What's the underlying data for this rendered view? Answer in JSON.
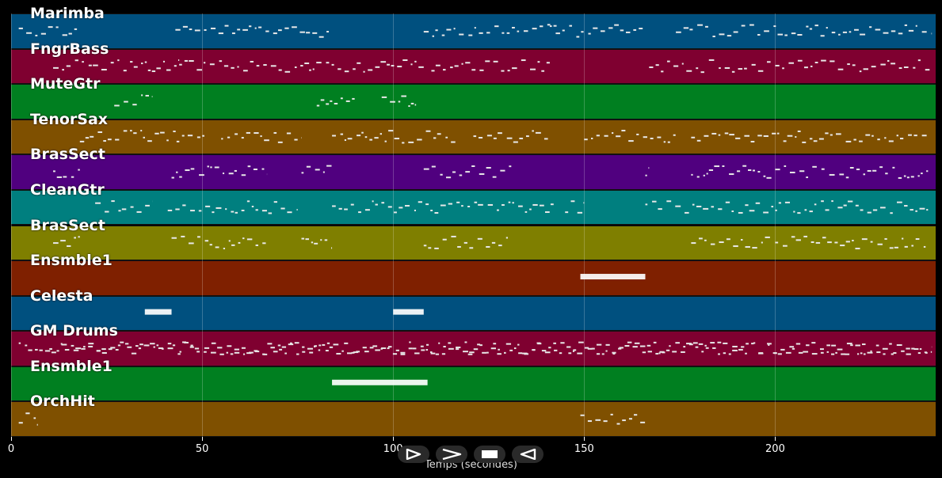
{
  "tracks": [
    {
      "label": "Marimba",
      "color": "#00507f"
    },
    {
      "label": "FngrBass",
      "color": "#7f0030"
    },
    {
      "label": "MuteGtr",
      "color": "#007f20"
    },
    {
      "label": "TenorSax",
      "color": "#7f5000"
    },
    {
      "label": "BrasSect",
      "color": "#50007f"
    },
    {
      "label": "CleanGtr",
      "color": "#007f7f"
    },
    {
      "label": "BrasSect",
      "color": "#7f7f00"
    },
    {
      "label": "Ensmble1",
      "color": "#7f2000"
    },
    {
      "label": "Celesta",
      "color": "#00507f"
    },
    {
      "label": "GM Drums",
      "color": "#7f0030"
    },
    {
      "label": "Ensmble1",
      "color": "#007f20"
    },
    {
      "label": "OrchHit",
      "color": "#7f5000"
    }
  ],
  "axis": {
    "xlabel": "Temps (secondes)",
    "xlim": [
      0,
      242
    ],
    "ticks": [
      0,
      50,
      100,
      150,
      200
    ],
    "tick_labels": [
      "0",
      "50",
      "100",
      "150",
      "200"
    ]
  },
  "controls": [
    {
      "name": "play-icon"
    },
    {
      "name": "fast-forward-icon"
    },
    {
      "name": "stop-icon"
    },
    {
      "name": "rewind-icon"
    }
  ],
  "note_segments": [
    {
      "track": 0,
      "start": 2,
      "end": 18
    },
    {
      "track": 0,
      "start": 43,
      "end": 84
    },
    {
      "track": 0,
      "start": 108,
      "end": 143
    },
    {
      "track": 0,
      "start": 141,
      "end": 166
    },
    {
      "track": 0,
      "start": 174,
      "end": 241
    },
    {
      "track": 1,
      "start": 11,
      "end": 44
    },
    {
      "track": 1,
      "start": 44,
      "end": 78
    },
    {
      "track": 1,
      "start": 78,
      "end": 108
    },
    {
      "track": 1,
      "start": 110,
      "end": 141
    },
    {
      "track": 1,
      "start": 167,
      "end": 241
    },
    {
      "track": 2,
      "start": 27,
      "end": 37
    },
    {
      "track": 2,
      "start": 80,
      "end": 90
    },
    {
      "track": 2,
      "start": 97,
      "end": 106
    },
    {
      "track": 3,
      "start": 18,
      "end": 51
    },
    {
      "track": 3,
      "start": 55,
      "end": 76
    },
    {
      "track": 3,
      "start": 84,
      "end": 117
    },
    {
      "track": 3,
      "start": 121,
      "end": 141
    },
    {
      "track": 3,
      "start": 150,
      "end": 174
    },
    {
      "track": 3,
      "start": 178,
      "end": 240
    },
    {
      "track": 4,
      "start": 11,
      "end": 18
    },
    {
      "track": 4,
      "start": 42,
      "end": 67
    },
    {
      "track": 4,
      "start": 76,
      "end": 84
    },
    {
      "track": 4,
      "start": 108,
      "end": 131
    },
    {
      "track": 4,
      "start": 166,
      "end": 167
    },
    {
      "track": 4,
      "start": 178,
      "end": 199
    },
    {
      "track": 4,
      "start": 200,
      "end": 240
    },
    {
      "track": 5,
      "start": 22,
      "end": 37
    },
    {
      "track": 5,
      "start": 41,
      "end": 75
    },
    {
      "track": 5,
      "start": 84,
      "end": 142
    },
    {
      "track": 5,
      "start": 145,
      "end": 150
    },
    {
      "track": 5,
      "start": 166,
      "end": 240
    },
    {
      "track": 6,
      "start": 11,
      "end": 18
    },
    {
      "track": 6,
      "start": 42,
      "end": 67
    },
    {
      "track": 6,
      "start": 76,
      "end": 84
    },
    {
      "track": 6,
      "start": 108,
      "end": 131
    },
    {
      "track": 6,
      "start": 178,
      "end": 199
    },
    {
      "track": 6,
      "start": 200,
      "end": 240
    },
    {
      "track": 7,
      "start": 149,
      "end": 166,
      "dense": true
    },
    {
      "track": 8,
      "start": 35,
      "end": 42,
      "dense": true
    },
    {
      "track": 8,
      "start": 100,
      "end": 108,
      "dense": true
    },
    {
      "track": 9,
      "start": 2,
      "end": 241
    },
    {
      "track": 9,
      "start": 10,
      "end": 241
    },
    {
      "track": 10,
      "start": 84,
      "end": 109,
      "dense": true
    },
    {
      "track": 11,
      "start": 2,
      "end": 7
    },
    {
      "track": 11,
      "start": 149,
      "end": 166
    }
  ]
}
